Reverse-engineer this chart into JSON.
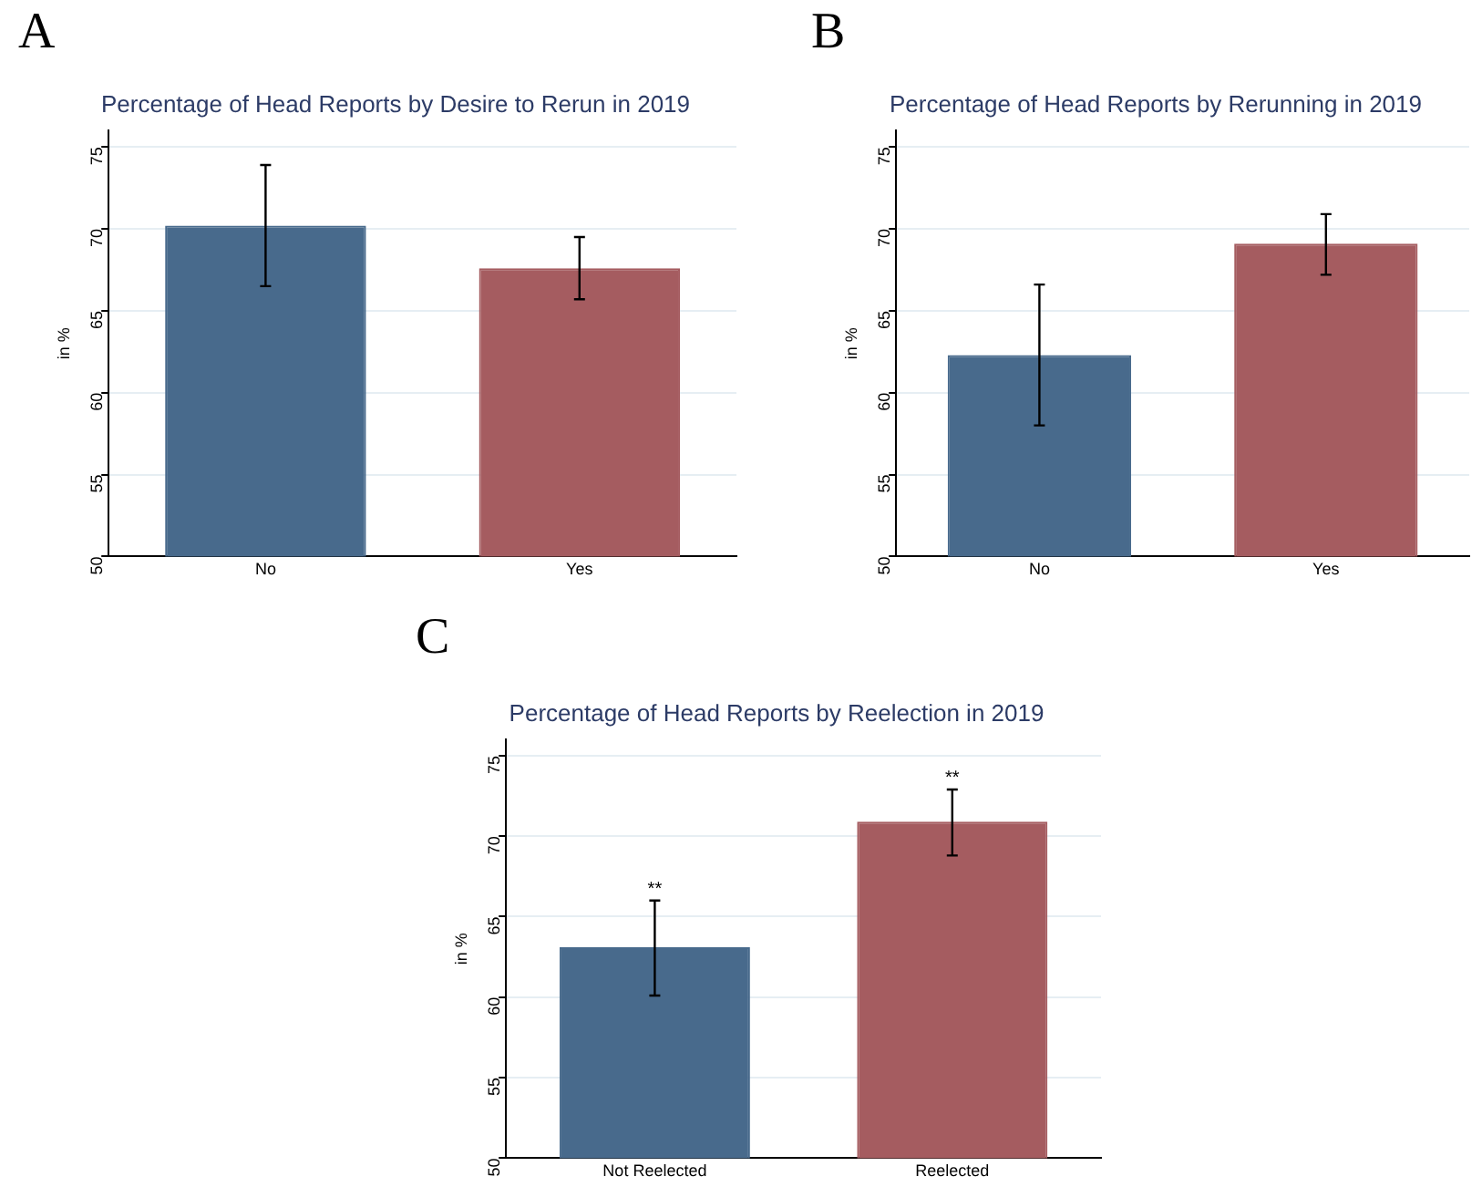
{
  "chart_data": [
    {
      "type": "bar",
      "title": "Percentage of Head Reports by Desire to Rerun in 2019",
      "ylabel": "in %",
      "categories": [
        "No",
        "Yes"
      ],
      "values": [
        70.2,
        67.6
      ],
      "colors": [
        "#486a8c",
        "#a55c60"
      ],
      "errors": [
        [
          66.5,
          73.9
        ],
        [
          65.7,
          69.5
        ]
      ],
      "ylim": [
        50,
        76
      ],
      "yticks": [
        50,
        55,
        60,
        65,
        70,
        75
      ],
      "grid": "y",
      "annotations": [
        "A"
      ]
    },
    {
      "type": "bar",
      "title": "Percentage of Head Reports by Rerunning in 2019",
      "ylabel": "in %",
      "categories": [
        "No",
        "Yes"
      ],
      "values": [
        62.3,
        69.1
      ],
      "colors": [
        "#486a8c",
        "#a55c60"
      ],
      "errors": [
        [
          58.0,
          66.6
        ],
        [
          67.2,
          70.9
        ]
      ],
      "ylim": [
        50,
        76
      ],
      "yticks": [
        50,
        55,
        60,
        65,
        70,
        75
      ],
      "grid": "y",
      "annotations": [
        "B"
      ]
    },
    {
      "type": "bar",
      "title": "Percentage of Head Reports by Reelection in 2019",
      "ylabel": "in %",
      "categories": [
        "Not Reelected",
        "Reelected"
      ],
      "values": [
        63.1,
        70.9
      ],
      "colors": [
        "#486a8c",
        "#a55c60"
      ],
      "errors": [
        [
          60.1,
          66.0
        ],
        [
          68.8,
          72.9
        ]
      ],
      "ylim": [
        50,
        76
      ],
      "yticks": [
        50,
        55,
        60,
        65,
        70,
        75
      ],
      "grid": "y",
      "annotations": [
        "C",
        {
          "text": "**",
          "x": "Not Reelected",
          "y": 66.0
        },
        {
          "text": "**",
          "x": "Reelected",
          "y": 72.9
        }
      ]
    }
  ]
}
